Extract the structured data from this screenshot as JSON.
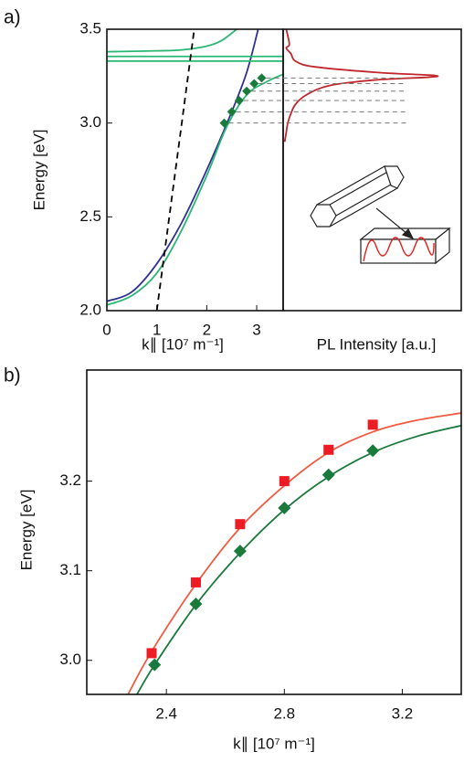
{
  "chart_data": [
    {
      "type": "line",
      "panel_label": "a)",
      "ylabel": "Energy [eV]",
      "xlabel": "k∥ [10⁷ m⁻¹]",
      "xlim": [
        0,
        3.53
      ],
      "ylim": [
        2.0,
        3.5
      ],
      "xticks": [
        0,
        1,
        2,
        3
      ],
      "yticks": [
        {
          "value": 2.0,
          "label": "2.0"
        },
        {
          "value": 2.5,
          "label": "2.5"
        },
        {
          "value": 3.0,
          "label": "3.0"
        },
        {
          "value": 3.5,
          "label": "3.5"
        }
      ],
      "series": [
        {
          "color": "#2e3192",
          "x": [
            0,
            0.5,
            1,
            1.5,
            2,
            2.5,
            2.8,
            3.03
          ],
          "values": [
            2.05,
            2.1,
            2.25,
            2.47,
            2.75,
            3.06,
            3.27,
            3.5
          ]
        },
        {
          "color": "#2bb673",
          "x": [
            0,
            0.5,
            1,
            1.5,
            2,
            2.4,
            2.8,
            3.2,
            3.53
          ],
          "values": [
            2.03,
            2.08,
            2.2,
            2.43,
            2.72,
            2.98,
            3.15,
            3.22,
            3.26
          ]
        },
        {
          "color": "#2bb673",
          "x": [
            0,
            1,
            1.5,
            2,
            2.3,
            2.6
          ],
          "values": [
            3.38,
            3.385,
            3.39,
            3.41,
            3.44,
            3.5
          ]
        },
        {
          "color": "#2bb673",
          "x": [
            0,
            3.53
          ],
          "values": [
            3.355,
            3.355
          ]
        },
        {
          "color": "#2bb673",
          "x": [
            0,
            3.53
          ],
          "values": [
            3.33,
            3.33
          ]
        },
        {
          "color": "#000000",
          "dash": true,
          "x": [
            1.0,
            1.75
          ],
          "values": [
            2.0,
            3.5
          ]
        },
        {
          "color": "#1a7a3c",
          "marker": "diamond",
          "x": [
            2.35,
            2.5,
            2.65,
            2.8,
            2.95,
            3.1
          ],
          "values": [
            3.0,
            3.06,
            3.12,
            3.17,
            3.21,
            3.24
          ]
        }
      ]
    },
    {
      "type": "line",
      "xlabel": "PL Intensity [a.u.]",
      "xlim": [
        0,
        1.15
      ],
      "ylim": [
        2.0,
        3.5
      ],
      "series": [
        {
          "color": "#c1272d",
          "x": [
            0.02,
            0.04,
            0.02,
            0.05,
            0.08,
            0.2,
            0.6,
            1.0,
            0.6,
            0.3,
            0.15,
            0.08,
            0.05,
            0.03,
            0.02,
            0.01
          ],
          "values": [
            3.5,
            3.42,
            3.4,
            3.37,
            3.33,
            3.3,
            3.27,
            3.25,
            3.23,
            3.2,
            3.15,
            3.1,
            3.05,
            3.0,
            2.95,
            2.9
          ]
        }
      ]
    },
    {
      "type": "line",
      "panel_label": "b)",
      "ylabel": "Energy [eV]",
      "xlabel": "k∥ [10⁷ m⁻¹]",
      "xlim": [
        2.13,
        3.4
      ],
      "ylim": [
        2.962,
        3.324
      ],
      "xticks": [
        2.4,
        2.8,
        3.2
      ],
      "yticks": [
        {
          "value": 3.0,
          "label": "3.0"
        },
        3.1,
        3.2
      ],
      "series": [
        {
          "color": "#f15a40",
          "x": [
            2.27,
            2.35,
            2.5,
            2.65,
            2.8,
            2.95,
            3.1,
            3.25,
            3.4
          ],
          "values": [
            2.962,
            3.01,
            3.085,
            3.148,
            3.195,
            3.232,
            3.255,
            3.268,
            3.276
          ]
        },
        {
          "color": "#1a7a3c",
          "x": [
            2.3,
            2.36,
            2.5,
            2.65,
            2.8,
            2.95,
            3.1,
            3.25,
            3.4
          ],
          "values": [
            2.962,
            2.995,
            3.062,
            3.12,
            3.168,
            3.205,
            3.232,
            3.25,
            3.262
          ]
        },
        {
          "color": "#ed1c24",
          "marker": "square",
          "x": [
            2.35,
            2.5,
            2.65,
            2.8,
            2.95,
            3.1
          ],
          "values": [
            3.008,
            3.087,
            3.152,
            3.2,
            3.235,
            3.263
          ]
        },
        {
          "color": "#1a7a3c",
          "marker": "diamond",
          "x": [
            2.36,
            2.5,
            2.65,
            2.8,
            2.95,
            3.1
          ],
          "values": [
            2.995,
            3.063,
            3.122,
            3.17,
            3.207,
            3.234
          ]
        }
      ]
    }
  ]
}
